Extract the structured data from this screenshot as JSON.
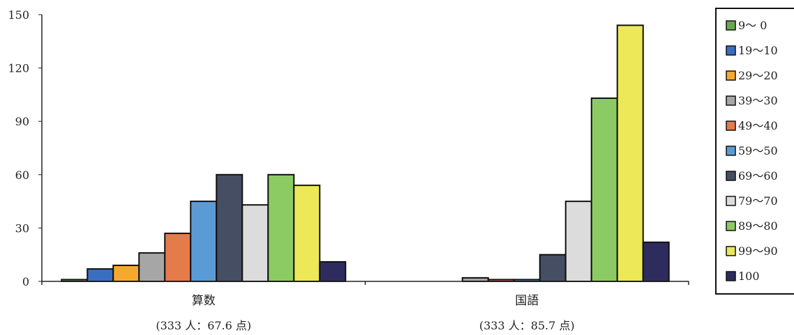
{
  "chart_data": {
    "type": "bar",
    "title": "",
    "xlabel": "",
    "ylabel": "",
    "ylim": [
      0,
      150
    ],
    "yticks": [
      "0",
      "30",
      "60",
      "90",
      "120",
      "150"
    ],
    "categories": [
      "算数",
      "国語"
    ],
    "subtitles": [
      "(333 人：67.6 点)",
      "(333 人：85.7 点)"
    ],
    "legend_position": "right",
    "series": [
      {
        "name": "9～ 0",
        "color": "#6AA84F",
        "values": [
          1,
          0
        ]
      },
      {
        "name": "19～10",
        "color": "#3A6FC0",
        "values": [
          7,
          0
        ]
      },
      {
        "name": "29～20",
        "color": "#F6A82E",
        "values": [
          9,
          0
        ]
      },
      {
        "name": "39～30",
        "color": "#A6A6A6",
        "values": [
          16,
          2
        ]
      },
      {
        "name": "49～40",
        "color": "#E57A4A",
        "values": [
          27,
          1
        ]
      },
      {
        "name": "59～50",
        "color": "#5B9BD5",
        "values": [
          45,
          1
        ]
      },
      {
        "name": "69～60",
        "color": "#464E63",
        "values": [
          60,
          15
        ]
      },
      {
        "name": "79～70",
        "color": "#DCDCDC",
        "values": [
          43,
          45
        ]
      },
      {
        "name": "89～80",
        "color": "#8CCB63",
        "values": [
          60,
          103
        ]
      },
      {
        "name": "99～90",
        "color": "#ECE858",
        "values": [
          54,
          144
        ]
      },
      {
        "name": "100",
        "color": "#2E2C5E",
        "values": [
          11,
          22
        ]
      }
    ]
  }
}
